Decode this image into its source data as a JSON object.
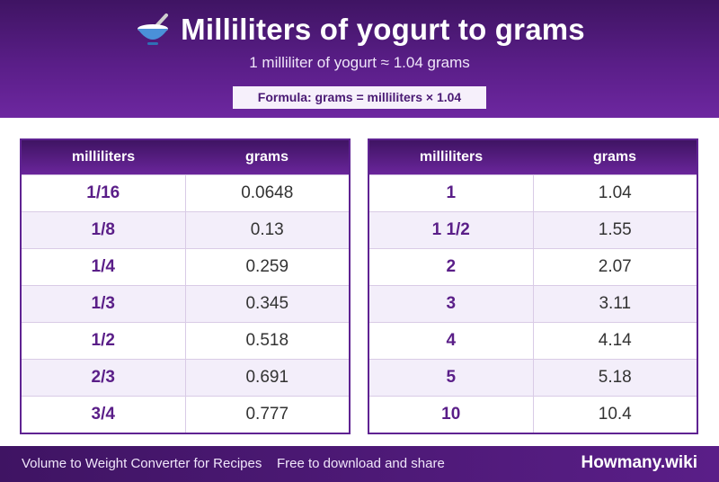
{
  "header": {
    "icon": "bowl-with-spoon-icon",
    "title": "Milliliters of yogurt to grams",
    "subtitle": "1 milliliter of yogurt ≈ 1.04 grams",
    "formula": "Formula: grams = milliliters × 1.04"
  },
  "tables": [
    {
      "columns": [
        "milliliters",
        "grams"
      ],
      "rows": [
        {
          "ml": "1/16",
          "g": "0.0648"
        },
        {
          "ml": "1/8",
          "g": "0.13"
        },
        {
          "ml": "1/4",
          "g": "0.259"
        },
        {
          "ml": "1/3",
          "g": "0.345"
        },
        {
          "ml": "1/2",
          "g": "0.518"
        },
        {
          "ml": "2/3",
          "g": "0.691"
        },
        {
          "ml": "3/4",
          "g": "0.777"
        }
      ]
    },
    {
      "columns": [
        "milliliters",
        "grams"
      ],
      "rows": [
        {
          "ml": "1",
          "g": "1.04"
        },
        {
          "ml": "1 1/2",
          "g": "1.55"
        },
        {
          "ml": "2",
          "g": "2.07"
        },
        {
          "ml": "3",
          "g": "3.11"
        },
        {
          "ml": "4",
          "g": "4.14"
        },
        {
          "ml": "5",
          "g": "5.18"
        },
        {
          "ml": "10",
          "g": "10.4"
        }
      ]
    }
  ],
  "footer": {
    "left": "Volume to Weight Converter for Recipes",
    "share": "Free to download and share",
    "brand": "Howmany.wiki"
  },
  "colors": {
    "primary": "#5a1e88",
    "dark": "#3f1463",
    "row_alt": "#f3eefa"
  }
}
